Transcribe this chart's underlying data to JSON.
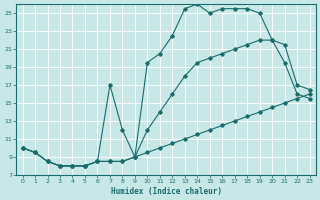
{
  "xlabel": "Humidex (Indice chaleur)",
  "background_color": "#c8e8e8",
  "line_color": "#1a6b6b",
  "xlim": [
    -0.5,
    23.5
  ],
  "ylim": [
    7,
    26
  ],
  "yticks": [
    7,
    9,
    11,
    13,
    15,
    17,
    19,
    21,
    23,
    25
  ],
  "xticks": [
    0,
    1,
    2,
    3,
    4,
    5,
    6,
    7,
    8,
    9,
    10,
    11,
    12,
    13,
    14,
    15,
    16,
    17,
    18,
    19,
    20,
    21,
    22,
    23
  ],
  "line_bottom": {
    "x": [
      0,
      1,
      2,
      3,
      4,
      5,
      6,
      7,
      8,
      9,
      10,
      11,
      12,
      13,
      14,
      15,
      16,
      17,
      18,
      19,
      20,
      21,
      22,
      23
    ],
    "y": [
      10.0,
      9.5,
      8.5,
      8.0,
      8.0,
      8.0,
      8.5,
      8.5,
      8.5,
      9.0,
      9.5,
      10.0,
      10.5,
      11.0,
      11.5,
      12.0,
      12.5,
      13.0,
      13.5,
      14.0,
      14.5,
      15.0,
      15.5,
      16.0
    ]
  },
  "line_mid": {
    "x": [
      0,
      1,
      2,
      3,
      4,
      5,
      6,
      7,
      8,
      9,
      10,
      11,
      12,
      13,
      14,
      15,
      16,
      17,
      18,
      19,
      20,
      21,
      22,
      23
    ],
    "y": [
      10.0,
      9.5,
      8.5,
      8.0,
      8.0,
      8.0,
      8.5,
      17.0,
      12.0,
      9.0,
      12.0,
      14.0,
      16.0,
      18.0,
      19.5,
      20.0,
      20.5,
      21.0,
      21.5,
      22.0,
      22.0,
      21.5,
      17.0,
      16.5
    ]
  },
  "line_top": {
    "x": [
      0,
      1,
      2,
      3,
      4,
      5,
      6,
      7,
      8,
      9,
      10,
      11,
      12,
      13,
      14,
      15,
      16,
      17,
      18,
      19,
      20,
      21,
      22,
      23
    ],
    "y": [
      10.0,
      9.5,
      8.5,
      8.0,
      8.0,
      8.0,
      8.5,
      8.5,
      8.5,
      9.0,
      19.5,
      20.5,
      22.5,
      25.5,
      26.0,
      25.0,
      25.5,
      25.5,
      25.5,
      25.0,
      22.0,
      19.5,
      16.0,
      15.5
    ]
  }
}
